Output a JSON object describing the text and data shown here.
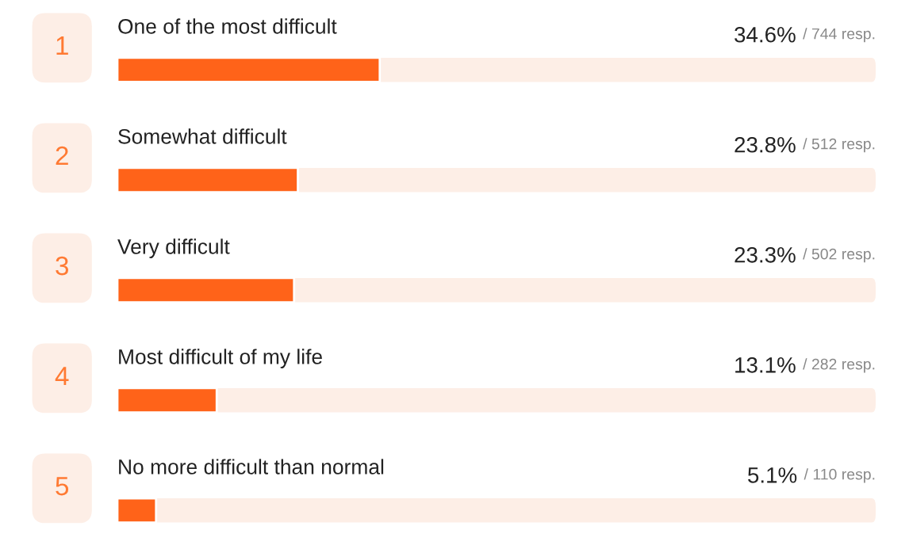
{
  "chart_data": {
    "type": "bar",
    "orientation": "horizontal",
    "categories": [
      "One of the most difficult",
      "Somewhat difficult",
      "Very difficult",
      "Most difficult of my life",
      "No more difficult than normal"
    ],
    "values": [
      34.6,
      23.8,
      23.3,
      13.1,
      5.1
    ],
    "color": "#ff6319",
    "xlim": [
      0,
      100
    ],
    "value_labels": [
      "34.6%",
      "23.8%",
      "23.3%",
      "13.1%",
      "5.1%"
    ],
    "annotations": [
      "1",
      "2",
      "3",
      "4",
      "5",
      "/ 744 resp.",
      "/ 512 resp.",
      "/ 502 resp.",
      "/ 282 resp.",
      "/ 110 resp."
    ]
  }
}
